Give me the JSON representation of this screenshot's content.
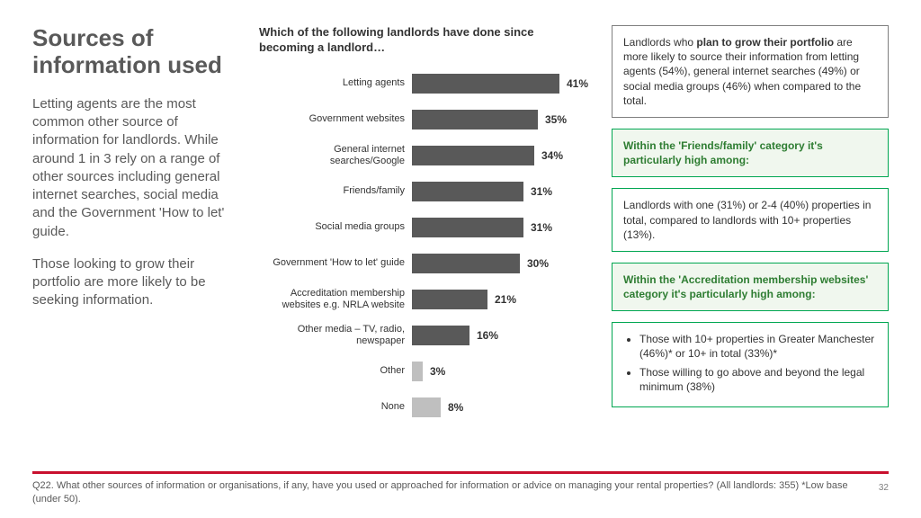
{
  "title": "Sources of information used",
  "paragraphs": [
    "Letting agents are the most common other source of information for landlords. While around 1 in 3 rely on a range of other sources including general internet searches, social media and the Government 'How to let' guide.",
    "Those looking to grow their portfolio are more likely to be seeking information."
  ],
  "chart": {
    "title": "Which of the following landlords have done since becoming a landlord…",
    "type": "bar-horizontal",
    "max_pct": 50,
    "bar_color_default": "#595959",
    "bar_color_muted": "#bfbfbf",
    "items": [
      {
        "label": "Letting agents",
        "value": 41,
        "color": "#595959"
      },
      {
        "label": "Government websites",
        "value": 35,
        "color": "#595959"
      },
      {
        "label": "General internet searches/Google",
        "value": 34,
        "color": "#595959"
      },
      {
        "label": "Friends/family",
        "value": 31,
        "color": "#595959"
      },
      {
        "label": "Social media groups",
        "value": 31,
        "color": "#595959"
      },
      {
        "label": "Government 'How to let' guide",
        "value": 30,
        "color": "#595959"
      },
      {
        "label": "Accreditation membership websites e.g. NRLA website",
        "value": 21,
        "color": "#595959"
      },
      {
        "label": "Other media – TV, radio, newspaper",
        "value": 16,
        "color": "#595959"
      },
      {
        "label": "Other",
        "value": 3,
        "color": "#bfbfbf"
      },
      {
        "label": "None",
        "value": 8,
        "color": "#bfbfbf"
      }
    ]
  },
  "callouts": [
    {
      "style": "gray",
      "html": "Landlords who <b>plan to grow their portfolio</b> are more likely to source their information from letting agents (54%), general internet searches (49%) or social media groups (46%) when compared to the total."
    },
    {
      "style": "green-hd",
      "html": "Within the 'Friends/family' category it's particularly high among:"
    },
    {
      "style": "green",
      "html": "Landlords with one (31%) or 2-4 (40%) properties in total, compared to landlords with 10+ properties (13%)."
    },
    {
      "style": "green-hd",
      "html": "Within the 'Accreditation membership websites' category it's particularly high among:"
    },
    {
      "style": "green",
      "list": [
        "Those with 10+ properties in Greater Manchester (46%)* or 10+ in total (33%)*",
        "Those willing to go above and beyond the legal minimum (38%)"
      ]
    }
  ],
  "footer": {
    "text": "Q22. What other sources of information or organisations, if any, have you used or approached for information or advice on managing your rental properties? (All landlords: 355) *Low base (under 50).",
    "page": "32"
  }
}
